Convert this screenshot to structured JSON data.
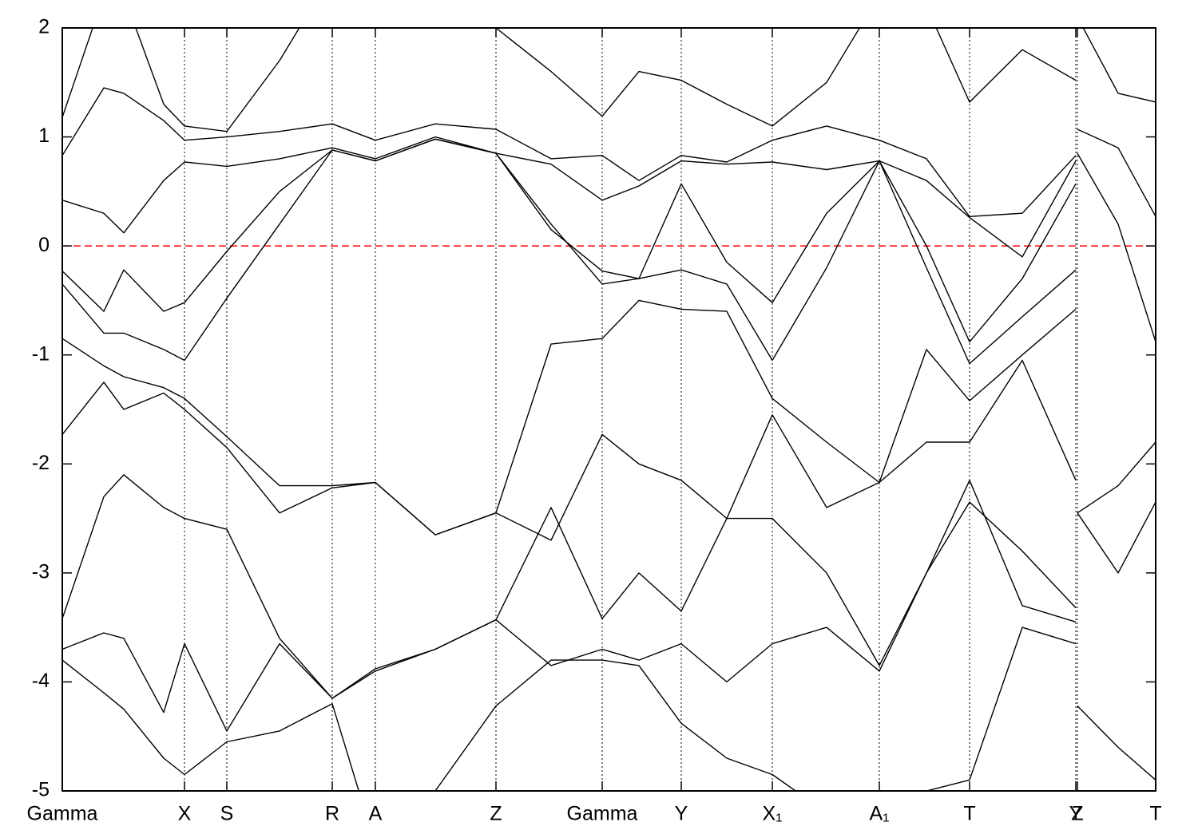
{
  "chart_data": {
    "type": "line",
    "x": [
      0,
      0.52,
      0.77,
      1.27,
      1.53,
      2.06,
      2.72,
      3.38,
      3.92,
      4.67,
      5.43,
      6.12,
      6.76,
      7.22,
      7.75,
      8.32,
      8.89,
      9.57,
      10.23,
      10.82,
      11.36,
      12.02,
      12.69,
      12.7,
      12.71,
      13.22,
      13.69
    ],
    "xlim": [
      0,
      13.69
    ],
    "ylim": [
      -5,
      2
    ],
    "yticks": [
      -5,
      -4,
      -3,
      -2,
      -1,
      0,
      1,
      2
    ],
    "xticks": [
      {
        "value": 0,
        "label": "Gamma"
      },
      {
        "value": 1.53,
        "label": "X"
      },
      {
        "value": 2.06,
        "label": "S"
      },
      {
        "value": 3.38,
        "label": "R"
      },
      {
        "value": 3.92,
        "label": "A"
      },
      {
        "value": 5.43,
        "label": "Z"
      },
      {
        "value": 6.76,
        "label": "Gamma"
      },
      {
        "value": 7.75,
        "label": "Y"
      },
      {
        "value": 8.89,
        "label": "X₁"
      },
      {
        "value": 10.23,
        "label": "A₁"
      },
      {
        "value": 11.36,
        "label": "T"
      },
      {
        "value": 12.69,
        "label": "Y"
      },
      {
        "value": 12.71,
        "label": "Z"
      },
      {
        "value": 13.69,
        "label": "T"
      }
    ],
    "line_color": "#000000",
    "hline": {
      "value": 0,
      "color": "#ff0000"
    },
    "series": [
      {
        "values": [
          1.18,
          2.3,
          2.3,
          1.3,
          1.1,
          1.05,
          1.7,
          2.5,
          2.6,
          2.4,
          2.0,
          1.6,
          1.19,
          1.6,
          1.52,
          1.3,
          1.1,
          1.5,
          2.3,
          2.2,
          1.32,
          1.8,
          1.52,
          null,
          2.1,
          1.4,
          1.32
        ]
      },
      {
        "values": [
          0.83,
          1.45,
          1.4,
          1.15,
          0.97,
          1.0,
          1.05,
          1.12,
          0.97,
          1.12,
          1.07,
          0.8,
          0.83,
          0.6,
          0.83,
          0.77,
          0.97,
          1.1,
          0.97,
          0.8,
          0.27,
          0.3,
          0.83,
          null,
          1.07,
          0.9,
          0.27
        ]
      },
      {
        "values": [
          0.42,
          0.3,
          0.12,
          0.6,
          0.77,
          0.73,
          0.8,
          0.9,
          0.8,
          1.0,
          0.85,
          0.75,
          0.42,
          0.55,
          0.78,
          0.75,
          0.77,
          0.7,
          0.78,
          0.6,
          0.26,
          -0.1,
          0.78,
          null,
          0.85,
          0.2,
          -0.88
        ]
      },
      {
        "values": [
          -0.23,
          -0.6,
          -0.22,
          -0.6,
          -0.52,
          -0.05,
          0.5,
          0.88,
          0.78,
          0.98,
          0.85,
          0.15,
          -0.23,
          -0.3,
          0.57,
          -0.15,
          -0.52,
          0.3,
          0.78,
          0.0,
          -0.88,
          -0.3,
          0.57,
          null,
          -2.45,
          -2.2,
          -1.8
        ]
      },
      {
        "values": [
          -0.35,
          -0.8,
          -0.8,
          -0.95,
          -1.05,
          -0.48,
          0.2,
          0.88,
          0.78,
          0.98,
          0.85,
          0.2,
          -0.35,
          -0.3,
          -0.22,
          -0.35,
          -1.05,
          -0.2,
          0.78,
          -0.2,
          -1.08,
          -0.65,
          -0.22,
          null,
          -2.45,
          -3.0,
          -2.35
        ]
      },
      {
        "values": [
          -0.85,
          -1.1,
          -1.2,
          -1.3,
          -1.4,
          -1.75,
          -2.2,
          -2.2,
          -2.17,
          -2.65,
          -2.45,
          -0.9,
          -0.85,
          -0.5,
          -0.58,
          -0.6,
          -1.4,
          -1.8,
          -2.17,
          -0.95,
          -1.42,
          -1.0,
          -0.58,
          null,
          -4.22,
          -4.6,
          -4.9
        ]
      },
      {
        "values": [
          -1.73,
          -1.25,
          -1.5,
          -1.35,
          -1.5,
          -1.85,
          -2.45,
          -2.22,
          -2.17,
          -2.65,
          -2.45,
          -2.7,
          -1.73,
          -2.0,
          -2.15,
          -2.5,
          -1.55,
          -2.4,
          -2.17,
          -1.8,
          -1.8,
          -1.05,
          -2.15,
          null,
          -5.5,
          -5.5,
          -5.5
        ]
      },
      {
        "values": [
          -3.42,
          -2.3,
          -2.1,
          -2.4,
          -2.5,
          -2.6,
          -3.6,
          -4.15,
          -3.9,
          -3.7,
          -3.43,
          -2.4,
          -3.42,
          -3.0,
          -3.35,
          -2.5,
          -2.5,
          -3.0,
          -3.85,
          -3.0,
          -2.35,
          -2.8,
          -3.32,
          null,
          -5.5,
          -5.5,
          -5.5
        ]
      },
      {
        "values": [
          -3.7,
          -3.55,
          -3.6,
          -4.28,
          -3.65,
          -4.45,
          -3.65,
          -4.15,
          -3.88,
          -3.7,
          -3.43,
          -3.85,
          -3.7,
          -3.8,
          -3.65,
          -4.0,
          -3.65,
          -3.5,
          -3.9,
          -3.0,
          -2.15,
          -3.3,
          -3.45,
          null,
          -5.5,
          -5.5,
          -5.5
        ]
      },
      {
        "values": [
          -3.8,
          -4.1,
          -4.25,
          -4.7,
          -4.85,
          -4.55,
          -4.45,
          -4.2,
          -5.5,
          -5.0,
          -4.22,
          -3.8,
          -3.8,
          -3.85,
          -4.38,
          -4.7,
          -4.85,
          -5.2,
          -5.6,
          -5.0,
          -4.9,
          -3.5,
          -3.65,
          null,
          -5.5,
          -5.5,
          -5.5
        ]
      }
    ]
  }
}
